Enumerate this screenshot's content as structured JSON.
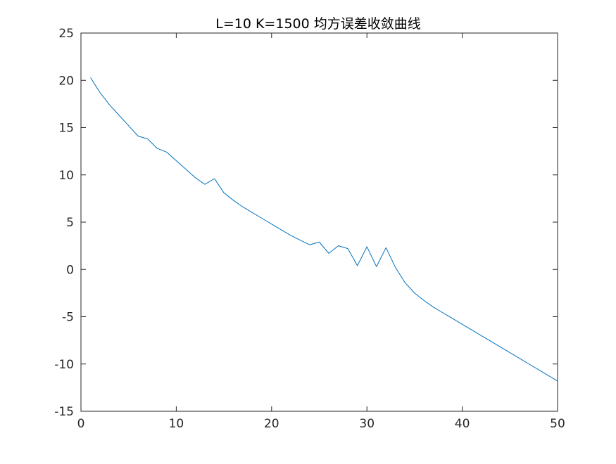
{
  "chart_data": {
    "type": "line",
    "title": "L=10 K=1500 均方误差收敛曲线",
    "xlabel": "",
    "ylabel": "",
    "xlim": [
      0,
      50
    ],
    "ylim": [
      -15,
      25
    ],
    "xticks": [
      0,
      10,
      20,
      30,
      40,
      50
    ],
    "yticks": [
      -15,
      -10,
      -5,
      0,
      5,
      10,
      15,
      20,
      25
    ],
    "grid": false,
    "line_color": "#0072BD",
    "axis_color": "#262626",
    "series": [
      {
        "x": [
          1,
          2,
          3,
          4,
          5,
          6,
          7,
          8,
          9,
          10,
          11,
          12,
          13,
          14,
          15,
          16,
          17,
          18,
          19,
          20,
          21,
          22,
          23,
          24,
          25,
          26,
          27,
          28,
          29,
          30,
          31,
          32,
          33,
          34,
          35,
          36,
          37,
          38,
          39,
          40,
          41,
          42,
          43,
          44,
          45,
          46,
          47,
          48,
          49,
          50
        ],
        "values": [
          20.3,
          18.7,
          17.4,
          16.3,
          15.2,
          14.1,
          13.8,
          12.8,
          12.4,
          11.5,
          10.6,
          9.7,
          9.0,
          9.6,
          8.1,
          7.3,
          6.6,
          6.0,
          5.4,
          4.8,
          4.2,
          3.6,
          3.1,
          2.6,
          2.9,
          1.7,
          2.5,
          2.2,
          0.4,
          2.4,
          0.3,
          2.3,
          0.2,
          -1.4,
          -2.5,
          -3.3,
          -4.0,
          -4.6,
          -5.2,
          -5.8,
          -6.4,
          -7.0,
          -7.6,
          -8.2,
          -8.8,
          -9.4,
          -10.0,
          -10.6,
          -11.2,
          -11.8
        ]
      }
    ]
  }
}
